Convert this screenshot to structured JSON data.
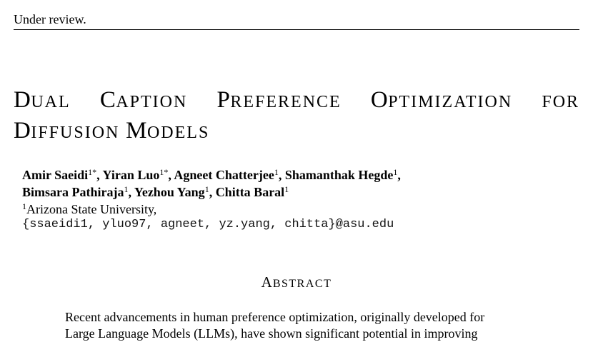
{
  "running_header": "Under review.",
  "title": {
    "line1": [
      {
        "cap": "D",
        "rest": "UAL"
      },
      {
        "cap": "C",
        "rest": "APTION"
      },
      {
        "cap": "P",
        "rest": "REFERENCE"
      },
      {
        "cap": "O",
        "rest": "PTIMIZATION"
      },
      {
        "cap": "",
        "rest": "FOR"
      }
    ],
    "line2": [
      {
        "cap": "D",
        "rest": "IFFUSION"
      },
      {
        "cap": "M",
        "rest": "ODELS"
      }
    ]
  },
  "authors": {
    "line1": [
      {
        "name": "Amir Saeidi",
        "sup": "1*",
        "sep": ", "
      },
      {
        "name": "Yiran Luo",
        "sup": "1*",
        "sep": ", "
      },
      {
        "name": "Agneet Chatterjee",
        "sup": "1",
        "sep": ", "
      },
      {
        "name": "Shamanthak Hegde",
        "sup": "1",
        "sep": ","
      }
    ],
    "line2": [
      {
        "name": "Bimsara Pathiraja",
        "sup": "1",
        "sep": ", "
      },
      {
        "name": "Yezhou Yang",
        "sup": "1",
        "sep": ", "
      },
      {
        "name": "Chitta Baral",
        "sup": "1",
        "sep": ""
      }
    ]
  },
  "affiliation": {
    "sup": "1",
    "name": "Arizona State University,"
  },
  "emails": "{ssaeidi1, yluo97, agneet, yz.yang, chitta}@asu.edu",
  "abstract": {
    "heading_cap": "A",
    "heading_rest": "BSTRACT",
    "lines": [
      "Recent advancements in human preference optimization, originally developed for",
      "Large Language Models (LLMs), have shown significant potential in improving"
    ]
  }
}
